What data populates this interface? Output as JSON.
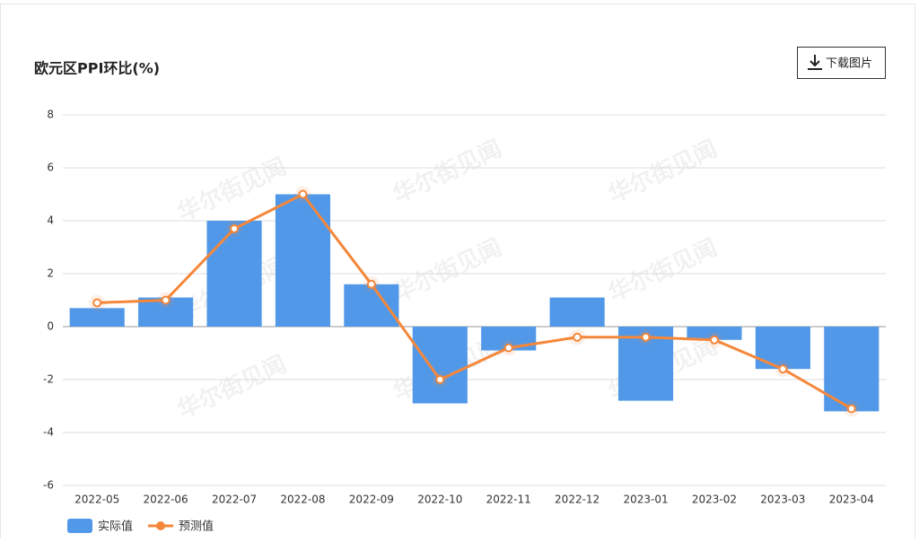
{
  "chart_data": {
    "type": "bar-line",
    "title": "欧元区PPI环比(%)",
    "button": "下载图片",
    "watermark": "华尔街见闻",
    "categories": [
      "2022-05",
      "2022-06",
      "2022-07",
      "2022-08",
      "2022-09",
      "2022-10",
      "2022-11",
      "2022-12",
      "2023-01",
      "2023-02",
      "2023-03",
      "2023-04"
    ],
    "series": [
      {
        "name": "实际值",
        "type": "bar",
        "color": "#5199e8",
        "values": [
          0.7,
          1.1,
          4.0,
          5.0,
          1.6,
          -2.9,
          -0.9,
          1.1,
          -2.8,
          -0.5,
          -1.6,
          -3.2
        ]
      },
      {
        "name": "预测值",
        "type": "line",
        "color": "#f5873a",
        "values": [
          0.9,
          1.0,
          3.7,
          5.0,
          1.6,
          -2.0,
          -0.8,
          -0.4,
          -0.4,
          -0.5,
          -1.6,
          -3.1
        ]
      }
    ],
    "ylim": [
      -6,
      8
    ],
    "yticks": [
      -6,
      -4,
      -2,
      0,
      2,
      4,
      6,
      8
    ],
    "grid": true
  }
}
